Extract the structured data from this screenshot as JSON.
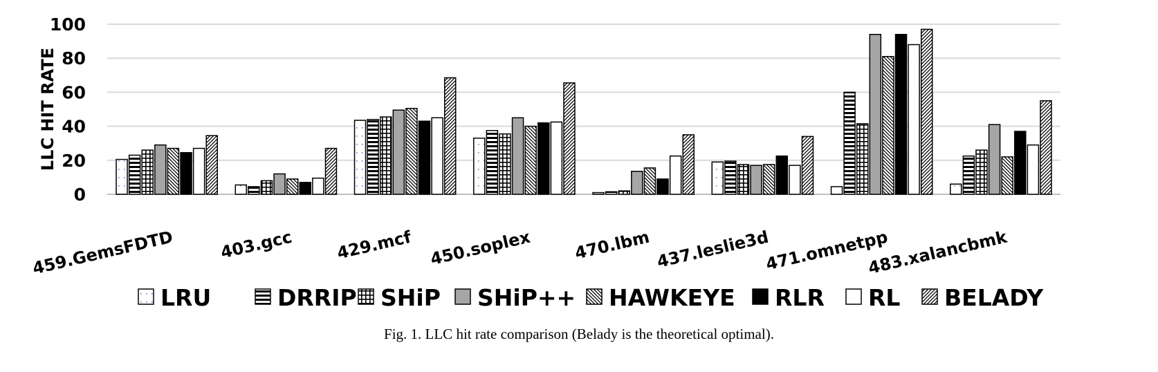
{
  "chart_data": {
    "type": "bar",
    "ylabel": "LLC HIT RATE",
    "xlabel": "",
    "ylim": [
      0,
      100
    ],
    "yticks": [
      "0",
      "20",
      "40",
      "60",
      "80",
      "100"
    ],
    "grid": true,
    "legend_position": "bottom",
    "categories": [
      "459.GemsFDTD",
      "403.gcc",
      "429.mcf",
      "450.soplex",
      "470.lbm",
      "437.leslie3d",
      "471.omnetpp",
      "483.xalancbmk"
    ],
    "series": [
      {
        "name": "LRU",
        "pattern": "dots",
        "values": [
          20.5,
          5.5,
          43.5,
          33,
          1,
          19,
          4.5,
          6
        ]
      },
      {
        "name": "DRRIP",
        "pattern": "hlines",
        "values": [
          23,
          4.5,
          44,
          37.5,
          1.5,
          19.5,
          60,
          22.5
        ]
      },
      {
        "name": "SHiP",
        "pattern": "grid",
        "values": [
          26,
          8,
          45.5,
          35.5,
          2,
          17.5,
          41.5,
          26
        ]
      },
      {
        "name": "SHiP++",
        "pattern": "gray",
        "values": [
          29,
          12,
          49.5,
          45,
          13.5,
          17,
          94,
          41
        ]
      },
      {
        "name": "HAWKEYE",
        "pattern": "backdiag",
        "values": [
          27,
          9,
          50.5,
          40,
          15.5,
          17.5,
          81,
          22
        ]
      },
      {
        "name": "RLR",
        "pattern": "black",
        "values": [
          24.5,
          7,
          43,
          42,
          9,
          22.5,
          94,
          37
        ]
      },
      {
        "name": "RL",
        "pattern": "white",
        "values": [
          27,
          9.5,
          45,
          42.5,
          22.5,
          17,
          88,
          29
        ]
      },
      {
        "name": "BELADY",
        "pattern": "fwddiag",
        "values": [
          34.5,
          27,
          68.5,
          65.5,
          35,
          34,
          97,
          55
        ]
      }
    ],
    "caption": "Fig. 1.  LLC hit rate comparison (Belady is the theoretical optimal)."
  }
}
